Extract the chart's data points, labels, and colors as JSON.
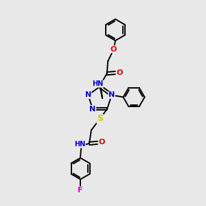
{
  "background_color": "#e8e8e8",
  "atom_colors": {
    "C": "#000000",
    "N": "#0000cc",
    "O": "#dd0000",
    "S": "#cccc00",
    "F": "#cc00cc",
    "H": "#000000"
  },
  "bond_lw": 1.4,
  "font_size": 8,
  "font_size_small": 7
}
